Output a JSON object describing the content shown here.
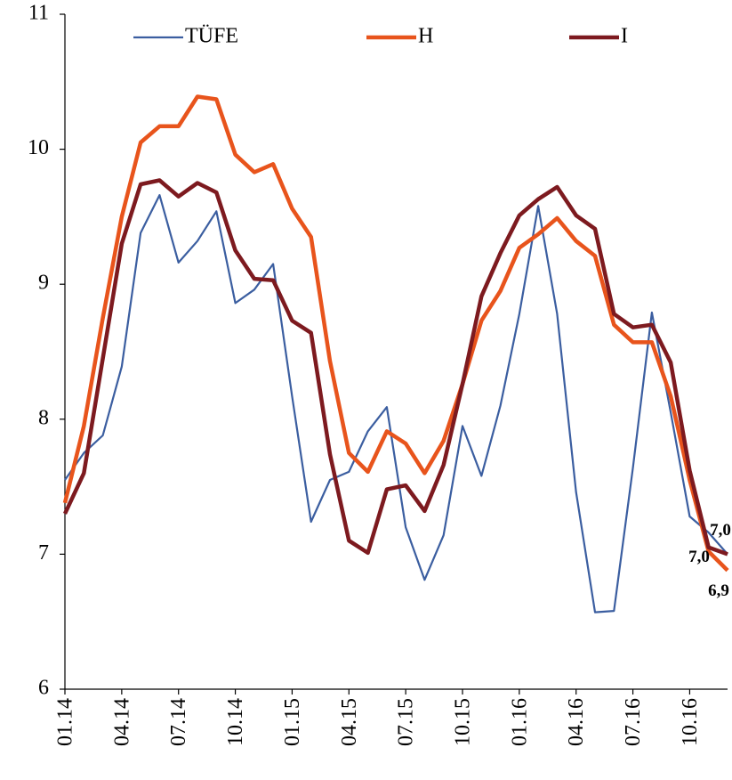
{
  "chart_data": {
    "type": "line",
    "categories": [
      "01.14",
      null,
      null,
      "04.14",
      null,
      null,
      "07.14",
      null,
      null,
      "10.14",
      null,
      null,
      "01.15",
      null,
      null,
      "04.15",
      null,
      null,
      "07.15",
      null,
      null,
      "10.15",
      null,
      null,
      "01.16",
      null,
      null,
      "04.16",
      null,
      null,
      "07.16",
      null,
      null,
      "10.16",
      null,
      null
    ],
    "series": [
      {
        "name": "TÜFE",
        "color": "#3b5ea0",
        "end_label": "7,0",
        "values": [
          7.55,
          7.75,
          7.88,
          8.39,
          9.38,
          9.66,
          9.16,
          9.32,
          9.54,
          8.86,
          8.96,
          9.15,
          8.17,
          7.24,
          7.55,
          7.61,
          7.91,
          8.09,
          7.2,
          6.81,
          7.14,
          7.95,
          7.58,
          8.1,
          8.78,
          9.58,
          8.78,
          7.46,
          6.57,
          6.58,
          7.64,
          8.79,
          8.05,
          7.28,
          7.16,
          7.0
        ]
      },
      {
        "name": "H",
        "color": "#e8541c",
        "end_label": "6,9",
        "values": [
          7.38,
          7.95,
          8.75,
          9.5,
          10.05,
          10.17,
          10.17,
          10.39,
          10.37,
          9.96,
          9.83,
          9.89,
          9.56,
          9.35,
          8.43,
          7.75,
          7.61,
          7.91,
          7.82,
          7.6,
          7.84,
          8.26,
          8.73,
          8.95,
          9.27,
          9.37,
          9.49,
          9.32,
          9.21,
          8.7,
          8.57,
          8.57,
          8.17,
          7.55,
          7.02,
          6.88
        ]
      },
      {
        "name": "I",
        "color": "#7d1a1f",
        "end_label": "7,0",
        "values": [
          7.3,
          7.6,
          8.45,
          9.3,
          9.74,
          9.77,
          9.65,
          9.75,
          9.68,
          9.25,
          9.04,
          9.03,
          8.73,
          8.64,
          7.74,
          7.1,
          7.01,
          7.48,
          7.51,
          7.32,
          7.66,
          8.26,
          8.91,
          9.23,
          9.51,
          9.63,
          9.72,
          9.51,
          9.41,
          8.78,
          8.68,
          8.7,
          8.42,
          7.62,
          7.05,
          7.0
        ]
      }
    ],
    "ylim": [
      6,
      11
    ],
    "yticks": [
      6,
      7,
      8,
      9,
      10,
      11
    ],
    "legend": "top",
    "grid": false
  }
}
